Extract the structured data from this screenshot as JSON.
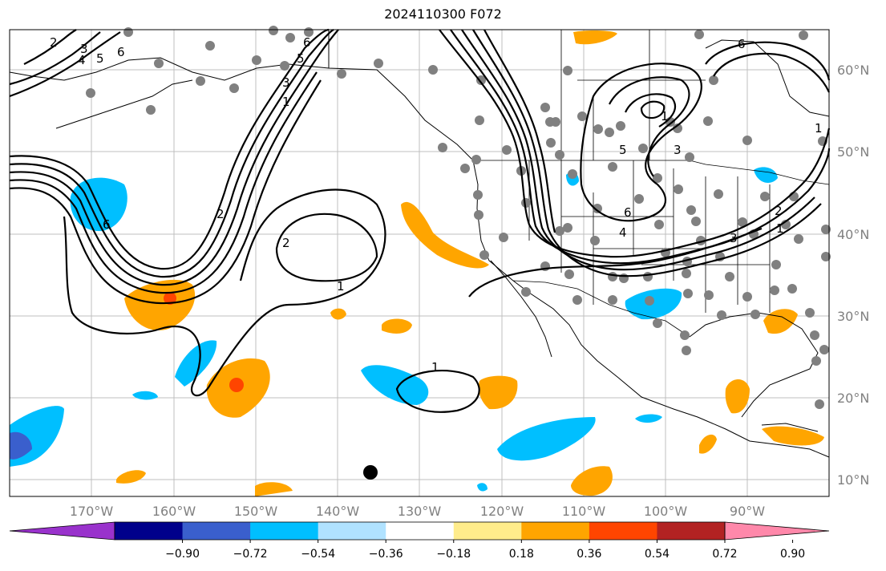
{
  "title": "2024110300 F072",
  "longitude_labels": [
    "170°W",
    "160°W",
    "150°W",
    "140°W",
    "130°W",
    "120°W",
    "110°W",
    "100°W",
    "90°W"
  ],
  "latitude_labels": [
    "60°N",
    "50°N",
    "40°N",
    "30°N",
    "20°N",
    "10°N"
  ],
  "contour_labels": [
    "2",
    "3",
    "4",
    "5",
    "6",
    "1",
    "2",
    "1",
    "2",
    "3",
    "5",
    "6",
    "1",
    "1",
    "5",
    "6",
    "4",
    "3",
    "1",
    "2",
    "1",
    "3",
    "6",
    "6"
  ],
  "colorbar": {
    "colors": [
      "#9932cc",
      "#00008b",
      "#3a5fcd",
      "#00bfff",
      "#b0e2ff",
      "#ffffff",
      "#ffec8b",
      "#ffa500",
      "#ff4500",
      "#b22222",
      "#ff88aa"
    ],
    "tick_labels": [
      "−0.90",
      "−0.72",
      "−0.54",
      "−0.36",
      "−0.18",
      "0.18",
      "0.36",
      "0.54",
      "0.72",
      "0.90"
    ]
  },
  "colors": {
    "land_outline": "#000000",
    "grid": "#bfbfbf",
    "station_dot": "#808080",
    "contour": "#000000"
  }
}
